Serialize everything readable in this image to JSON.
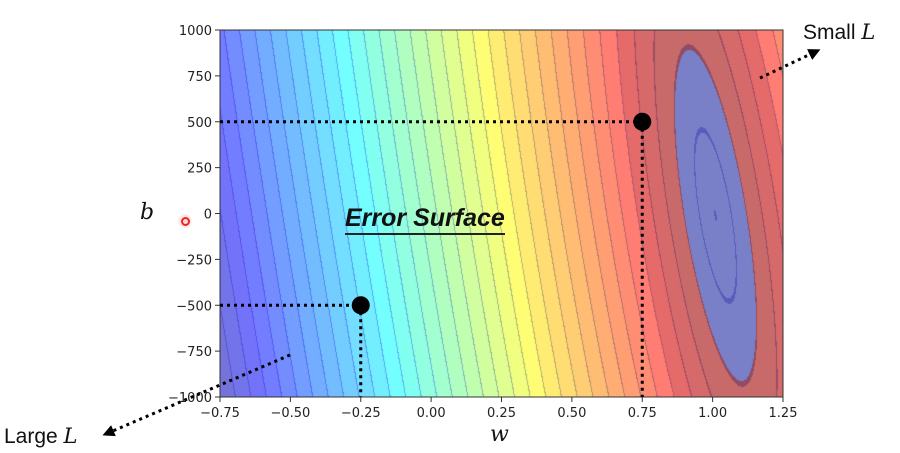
{
  "chart_data": {
    "type": "contour",
    "title": "Error Surface",
    "xlabel": "w",
    "ylabel": "b",
    "xlim": [
      -0.75,
      1.25
    ],
    "ylim": [
      -1000,
      1000
    ],
    "xticks": [
      "−0.75",
      "−0.50",
      "−0.25",
      "0.00",
      "0.25",
      "0.50",
      "0.75",
      "1.00",
      "1.25"
    ],
    "yticks": [
      "1000",
      "750",
      "500",
      "250",
      "0",
      "−250",
      "−500",
      "−750",
      "−1000"
    ],
    "colormap": "jet",
    "minimum_color": "#7b80c8",
    "points": [
      {
        "w": -0.25,
        "b": -500
      },
      {
        "w": 0.75,
        "b": 500
      }
    ],
    "annotations": {
      "small": {
        "text": "Small ",
        "var": "L"
      },
      "large": {
        "text": "Large ",
        "var": "L"
      }
    },
    "grid": false
  }
}
